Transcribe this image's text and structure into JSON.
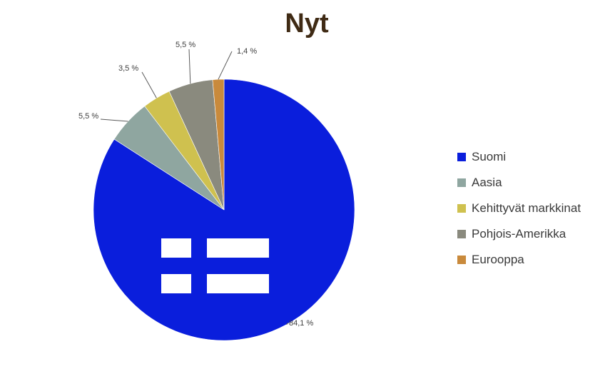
{
  "chart_data": {
    "type": "pie",
    "title": "Nyt",
    "categories": [
      "Suomi",
      "Aasia",
      "Kehittyvät markkinat",
      "Pohjois-Amerikka",
      "Eurooppa"
    ],
    "values": [
      84.1,
      5.5,
      3.5,
      5.5,
      1.4
    ],
    "data_labels": [
      "84,1 %",
      "5,5 %",
      "3,5 %",
      "5,5 %",
      "1,4 %"
    ],
    "colors": [
      "#0a1edc",
      "#8fa6a0",
      "#cfc14f",
      "#8a8a7e",
      "#c98a3c"
    ],
    "legend_position": "right",
    "start_angle": "12 o'clock",
    "direction": "clockwise",
    "flag_overlay": "finnish-flag-cross on Suomi slice"
  }
}
